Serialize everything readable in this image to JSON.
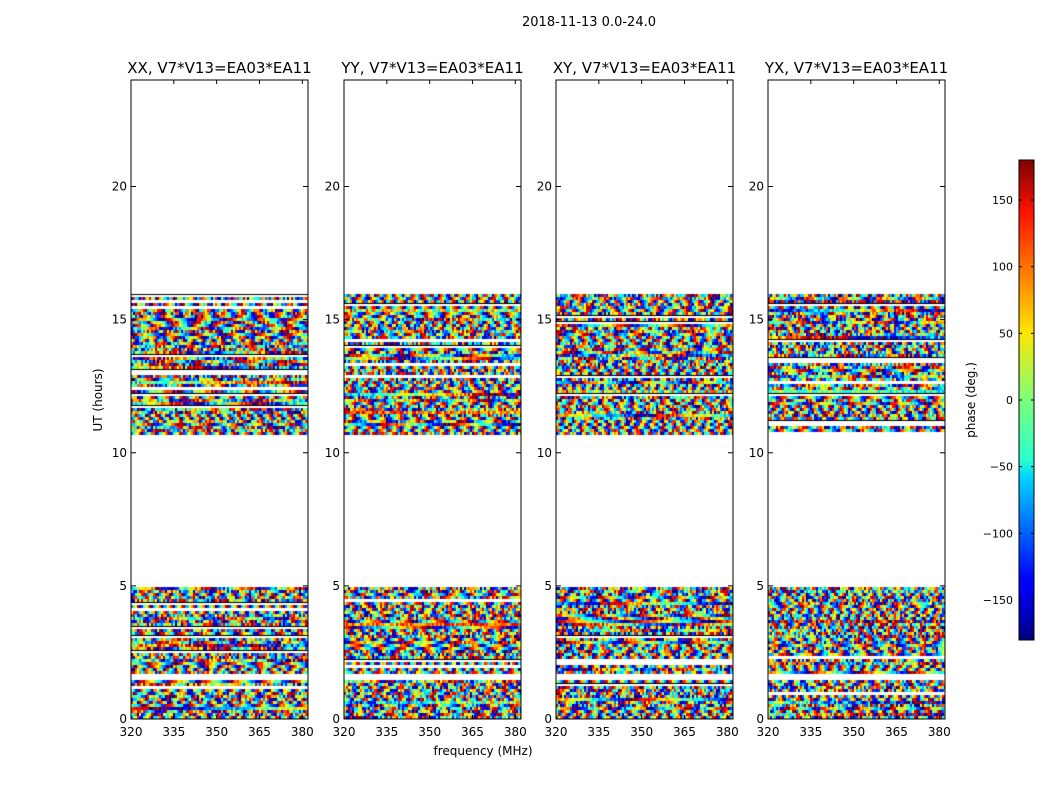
{
  "chart_data": {
    "type": "heatmap",
    "figure_title": "2018-11-13 0.0-24.0",
    "xlabel": "frequency (MHz)",
    "ylabel": "UT (hours)",
    "xlim": [
      320,
      382
    ],
    "ylim": [
      0,
      24
    ],
    "xticks": [
      320,
      335,
      350,
      365,
      380
    ],
    "yticks": [
      0,
      5,
      10,
      15,
      20
    ],
    "panels": [
      {
        "title": "XX, V7*V13=EA03*EA11",
        "seed": 11
      },
      {
        "title": "YY, V7*V13=EA03*EA11",
        "seed": 23
      },
      {
        "title": "XY, V7*V13=EA03*EA11",
        "seed": 37
      },
      {
        "title": "YX, V7*V13=EA03*EA11",
        "seed": 53
      }
    ],
    "data_time_ranges_hours": [
      [
        0.0,
        1.45
      ],
      [
        1.7,
        4.95
      ],
      [
        10.75,
        15.95
      ]
    ],
    "colorbar": {
      "label": "phase (deg.)",
      "range": [
        -180,
        180
      ],
      "ticks": [
        -150,
        -100,
        -50,
        0,
        50,
        100,
        150
      ],
      "tick_labels": [
        "−150",
        "−100",
        "−50",
        "0",
        "50",
        "100",
        "150"
      ],
      "colormap": "jet"
    }
  }
}
